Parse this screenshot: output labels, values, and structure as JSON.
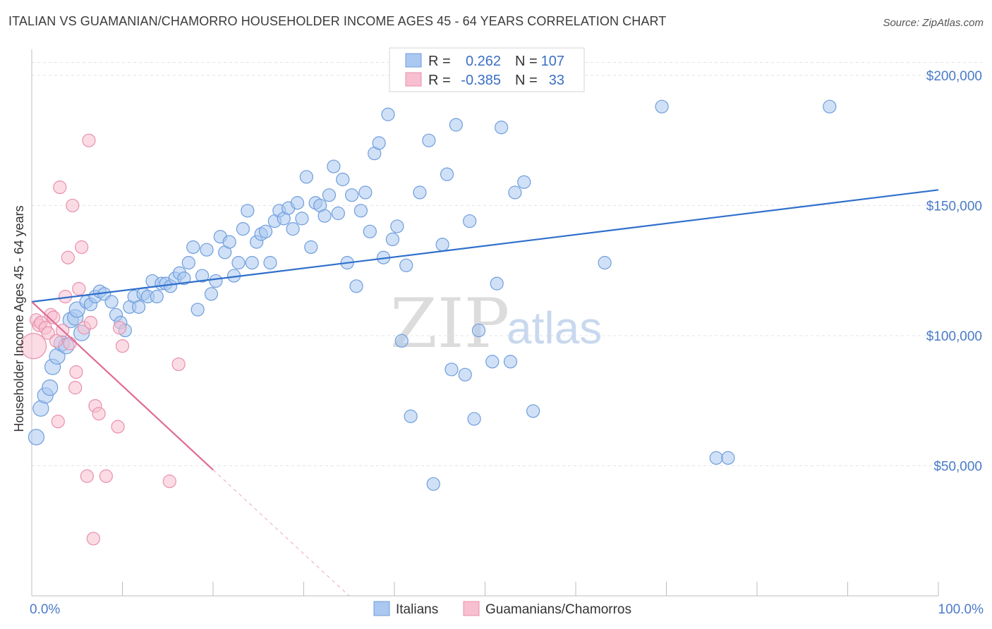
{
  "title": "ITALIAN VS GUAMANIAN/CHAMORRO HOUSEHOLDER INCOME AGES 45 - 64 YEARS CORRELATION CHART",
  "source": "Source: ZipAtlas.com",
  "watermark": {
    "zip": "ZIP",
    "atlas": "atlas"
  },
  "stats": [
    {
      "r_label": "R =",
      "r_value": "0.262",
      "n_label": "N =",
      "n_value": "107"
    },
    {
      "r_label": "R =",
      "r_value": "-0.385",
      "n_label": "N =",
      "n_value": "33"
    }
  ],
  "colors": {
    "italians_fill": "#aac8f0",
    "italians_stroke": "#6f9ddc",
    "italians_line": "#2f6fcc",
    "guam_fill": "#f7bfd0",
    "guam_stroke": "#e98fad",
    "guam_line": "#e06a96",
    "grid": "#e3e3e3",
    "tick_text": "#4a7bc8"
  },
  "chart_data": {
    "type": "scatter",
    "xlabel": "",
    "ylabel": "Householder Income Ages 45 - 64 years",
    "xlim": [
      0,
      100
    ],
    "ylim": [
      0,
      210000
    ],
    "x_tick_labels": [
      {
        "value": 0,
        "label": "0.0%"
      },
      {
        "value": 100,
        "label": "100.0%"
      }
    ],
    "y_ticks": [
      {
        "value": 50000,
        "label": "$50,000"
      },
      {
        "value": 100000,
        "label": "$100,000"
      },
      {
        "value": 150000,
        "label": "$150,000"
      },
      {
        "value": 200000,
        "label": "$200,000"
      }
    ],
    "grid": true,
    "legend_position": "bottom-center",
    "series": [
      {
        "name": "Italians",
        "r": 0.262,
        "n": 107,
        "trend": {
          "x0": 0,
          "y0": 113000,
          "x1": 100,
          "y1": 156000,
          "solid_until": 100
        },
        "points": [
          [
            0.5,
            61000
          ],
          [
            1,
            72000
          ],
          [
            1.5,
            77000
          ],
          [
            2,
            80000
          ],
          [
            2.3,
            88000
          ],
          [
            2.8,
            92000
          ],
          [
            3.3,
            97000
          ],
          [
            3.8,
            96000
          ],
          [
            4.3,
            106000
          ],
          [
            4.8,
            107000
          ],
          [
            5,
            110000
          ],
          [
            5.5,
            101000
          ],
          [
            6,
            113000
          ],
          [
            6.5,
            112000
          ],
          [
            7,
            115000
          ],
          [
            7.5,
            117000
          ],
          [
            8,
            116000
          ],
          [
            8.8,
            113000
          ],
          [
            9.3,
            108000
          ],
          [
            9.8,
            105000
          ],
          [
            10.3,
            102000
          ],
          [
            10.8,
            111000
          ],
          [
            11.3,
            115000
          ],
          [
            11.8,
            111000
          ],
          [
            12.3,
            116000
          ],
          [
            12.8,
            115000
          ],
          [
            13.3,
            121000
          ],
          [
            13.8,
            115000
          ],
          [
            14.3,
            120000
          ],
          [
            14.8,
            120000
          ],
          [
            15.3,
            119000
          ],
          [
            15.8,
            122000
          ],
          [
            16.3,
            124000
          ],
          [
            16.8,
            122000
          ],
          [
            17.3,
            128000
          ],
          [
            17.8,
            134000
          ],
          [
            18.3,
            110000
          ],
          [
            18.8,
            123000
          ],
          [
            19.3,
            133000
          ],
          [
            19.8,
            116000
          ],
          [
            20.3,
            121000
          ],
          [
            20.8,
            138000
          ],
          [
            21.3,
            132000
          ],
          [
            21.8,
            136000
          ],
          [
            22.3,
            123000
          ],
          [
            22.8,
            128000
          ],
          [
            23.3,
            141000
          ],
          [
            23.8,
            148000
          ],
          [
            24.3,
            128000
          ],
          [
            24.8,
            136000
          ],
          [
            25.3,
            139000
          ],
          [
            25.8,
            140000
          ],
          [
            26.3,
            128000
          ],
          [
            26.8,
            144000
          ],
          [
            27.3,
            148000
          ],
          [
            27.8,
            145000
          ],
          [
            28.3,
            149000
          ],
          [
            28.8,
            141000
          ],
          [
            29.3,
            151000
          ],
          [
            29.8,
            145000
          ],
          [
            30.3,
            161000
          ],
          [
            30.8,
            134000
          ],
          [
            31.3,
            151000
          ],
          [
            31.8,
            150000
          ],
          [
            32.3,
            146000
          ],
          [
            32.8,
            154000
          ],
          [
            33.3,
            165000
          ],
          [
            33.8,
            147000
          ],
          [
            34.3,
            160000
          ],
          [
            34.8,
            128000
          ],
          [
            35.3,
            154000
          ],
          [
            35.8,
            119000
          ],
          [
            36.3,
            148000
          ],
          [
            36.8,
            155000
          ],
          [
            37.3,
            140000
          ],
          [
            37.8,
            170000
          ],
          [
            38.3,
            174000
          ],
          [
            38.8,
            130000
          ],
          [
            39.3,
            185000
          ],
          [
            39.8,
            137000
          ],
          [
            40.3,
            142000
          ],
          [
            40.8,
            98000
          ],
          [
            41.3,
            127000
          ],
          [
            41.8,
            69000
          ],
          [
            42.8,
            155000
          ],
          [
            43.8,
            175000
          ],
          [
            44.3,
            43000
          ],
          [
            45.3,
            135000
          ],
          [
            45.8,
            162000
          ],
          [
            46.3,
            87000
          ],
          [
            46.8,
            181000
          ],
          [
            47.8,
            85000
          ],
          [
            48.3,
            144000
          ],
          [
            48.8,
            68000
          ],
          [
            49.3,
            102000
          ],
          [
            50.8,
            90000
          ],
          [
            51.3,
            120000
          ],
          [
            51.8,
            180000
          ],
          [
            52.8,
            90000
          ],
          [
            53.3,
            155000
          ],
          [
            54.3,
            159000
          ],
          [
            55.3,
            71000
          ],
          [
            63.2,
            128000
          ],
          [
            69.5,
            188000
          ],
          [
            75.5,
            53000
          ],
          [
            76.8,
            53000
          ],
          [
            88,
            188000
          ]
        ]
      },
      {
        "name": "Guamanians/Chamorros",
        "r": -0.385,
        "n": 33,
        "trend": {
          "x0": 0,
          "y0": 113000,
          "x1": 35,
          "y1": 0,
          "solid_until": 20
        },
        "points": [
          [
            0.2,
            96000
          ],
          [
            0.5,
            106000
          ],
          [
            0.8,
            104000
          ],
          [
            1,
            105000
          ],
          [
            1.5,
            103000
          ],
          [
            1.8,
            101000
          ],
          [
            2.1,
            108000
          ],
          [
            2.4,
            107000
          ],
          [
            2.7,
            98000
          ],
          [
            2.9,
            67000
          ],
          [
            3.1,
            157000
          ],
          [
            3.4,
            102000
          ],
          [
            3.7,
            115000
          ],
          [
            4,
            130000
          ],
          [
            4.2,
            97000
          ],
          [
            4.5,
            150000
          ],
          [
            4.8,
            80000
          ],
          [
            4.9,
            86000
          ],
          [
            5.2,
            118000
          ],
          [
            5.5,
            134000
          ],
          [
            5.8,
            103000
          ],
          [
            6.1,
            46000
          ],
          [
            6.3,
            175000
          ],
          [
            6.5,
            105000
          ],
          [
            6.8,
            22000
          ],
          [
            7,
            73000
          ],
          [
            7.4,
            70000
          ],
          [
            8.2,
            46000
          ],
          [
            9.5,
            65000
          ],
          [
            9.7,
            103000
          ],
          [
            10,
            96000
          ],
          [
            15.2,
            44000
          ],
          [
            16.2,
            89000
          ]
        ]
      }
    ]
  }
}
